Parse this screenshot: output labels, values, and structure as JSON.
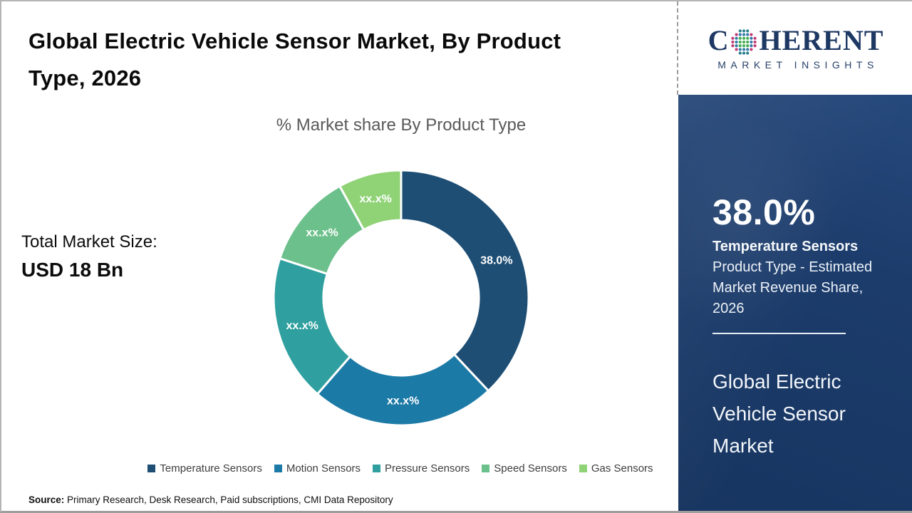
{
  "page": {
    "title_line1": "Global Electric Vehicle Sensor Market, By Product",
    "title_line2": "Type, 2026",
    "total_market_label": "Total Market Size:",
    "total_market_value": "USD 18 Bn",
    "source_label": "Source:",
    "source_text": " Primary Research, Desk Research, Paid subscriptions, CMI Data Repository"
  },
  "logo": {
    "prefix": "C",
    "suffix": "HERENT",
    "subtitle": "MARKET INSIGHTS",
    "text_color": "#1e3864",
    "globe_colors": {
      "pink": "#c13a77",
      "teal": "#2b7f8e",
      "blue": "#2f7aa8",
      "green": "#43ad53"
    }
  },
  "chart_data": {
    "type": "pie",
    "subtype": "donut",
    "title": "% Market share By Product Type",
    "categories": [
      "Temperature Sensors",
      "Motion Sensors",
      "Pressure Sensors",
      "Speed Sensors",
      "Gas Sensors"
    ],
    "values": [
      38.0,
      23.4,
      18.6,
      12.0,
      8.0
    ],
    "slice_labels": [
      "38.0%",
      "xx.x%",
      "xx.x%",
      "xx.x%",
      "xx.x%"
    ],
    "colors": [
      "#1e4e74",
      "#1c7aa6",
      "#2fa09f",
      "#6cc08b",
      "#90d377"
    ],
    "start_angle_deg": 0,
    "direction": "clockwise",
    "inner_radius_ratio": 0.61,
    "gap_stroke_color": "#ffffff",
    "legend_position": "bottom",
    "label_color": "#ffffff"
  },
  "sidebar": {
    "stat_value": "38.0%",
    "stat_label": "Temperature Sensors",
    "desc_line1": "Product Type - Estimated",
    "desc_line2": "Market Revenue Share,",
    "desc_line3": "2026",
    "market_line1": "Global Electric",
    "market_line2": "Vehicle Sensor",
    "market_line3": "Market",
    "bg_color": "#1c3c6c"
  }
}
